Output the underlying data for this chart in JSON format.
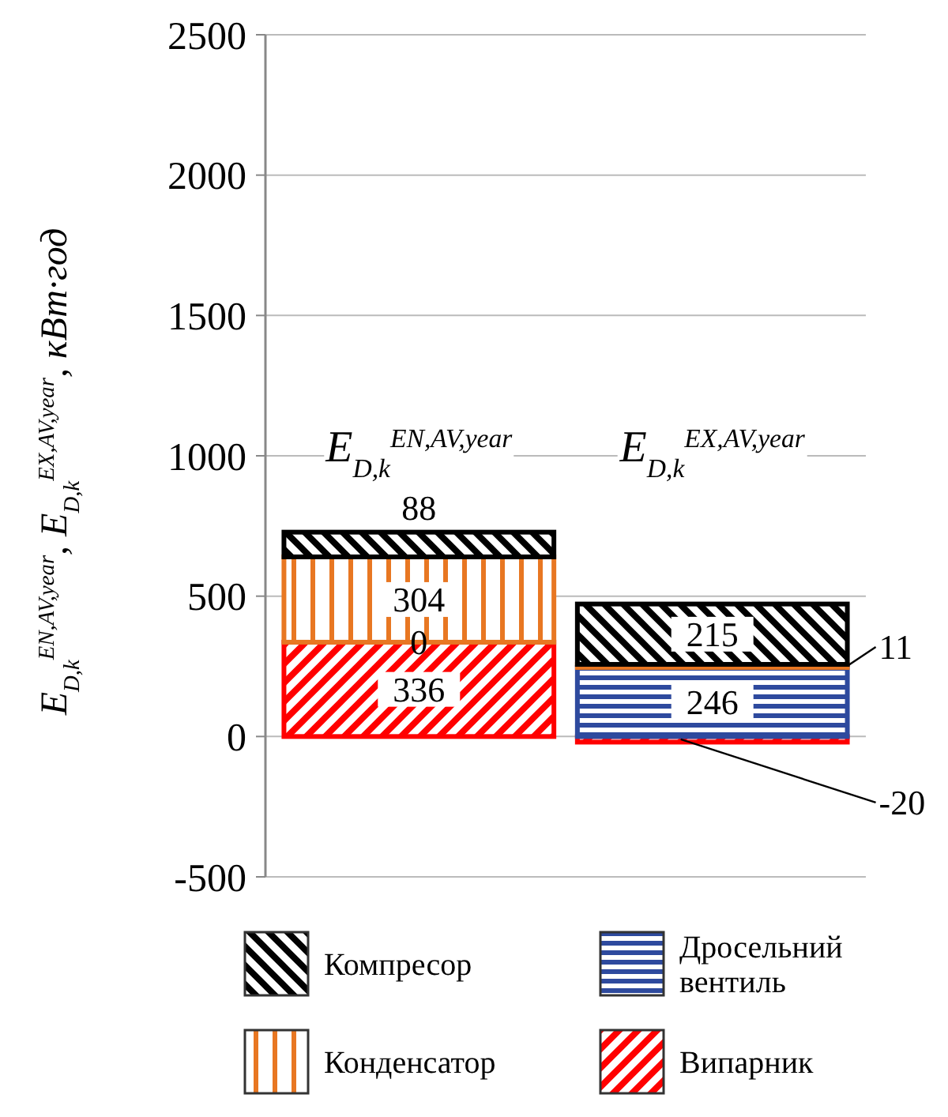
{
  "chart_data": {
    "type": "bar",
    "stacked": true,
    "ylabel": "E$_{D,k}$$^{EN,AV,year}$, E$_{D,k}$$^{EX,AV,year}$, кВт·год",
    "categories": [
      "E$_{D,k}$$^{EN,AV,year}$",
      "E$_{D,k}$$^{EX,AV,year}$"
    ],
    "series": [
      {
        "name": "Випарник",
        "color": "#ff0000",
        "values": [
          336,
          -20
        ]
      },
      {
        "name": "Дросельний вентиль",
        "color": "#2e4a9e",
        "values": [
          0,
          246
        ]
      },
      {
        "name": "Конденсатор",
        "color": "#e87722",
        "values": [
          304,
          11
        ]
      },
      {
        "name": "Компресор",
        "color": "#000000",
        "values": [
          88,
          215
        ]
      }
    ],
    "data_labels": true,
    "ylim": [
      -500,
      2500
    ],
    "yticks": [
      -500,
      0,
      500,
      1000,
      1500,
      2000,
      2500
    ],
    "grid": "y",
    "legend": "bottom"
  }
}
